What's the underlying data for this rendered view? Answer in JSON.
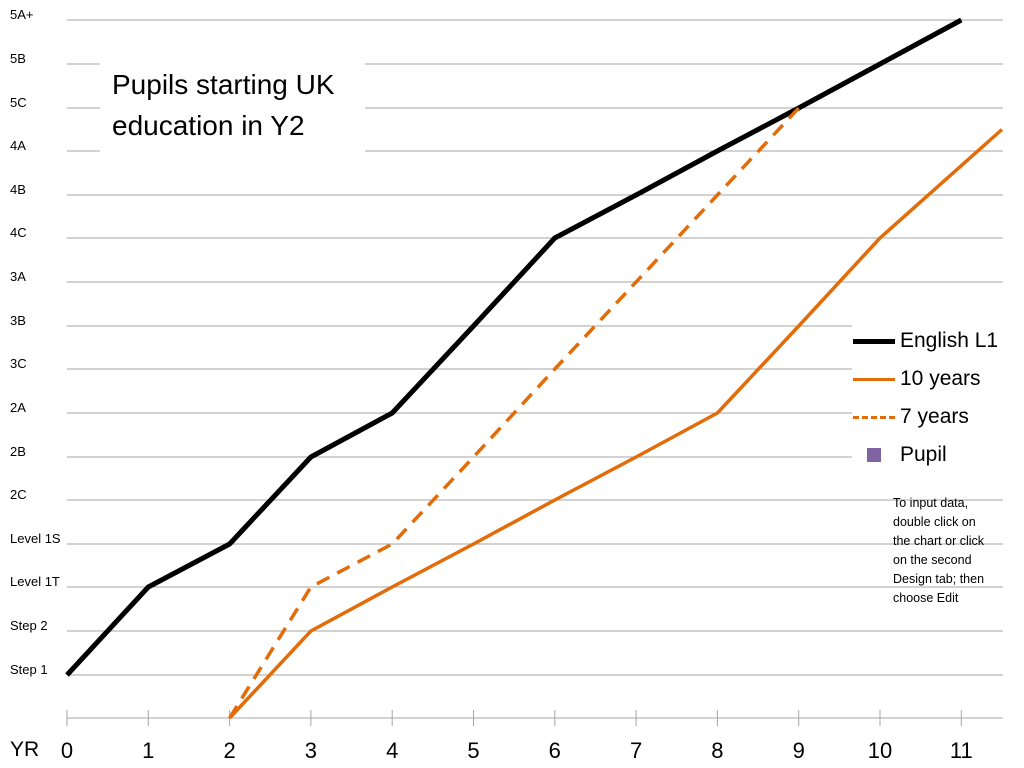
{
  "chart_data": {
    "type": "line",
    "title": "Pupils starting UK education in Y2",
    "xlabel": "YR",
    "x_ticks": [
      "0",
      "1",
      "2",
      "3",
      "4",
      "5",
      "6",
      "7",
      "8",
      "9",
      "10",
      "11"
    ],
    "y_levels": [
      "Step 1",
      "Step 2",
      "Level 1T",
      "Level 1S",
      "2C",
      "2B",
      "2A",
      "3C",
      "3B",
      "3A",
      "4C",
      "4B",
      "4A",
      "5C",
      "5B",
      "5A+"
    ],
    "series": [
      {
        "name": "English L1",
        "color": "#000000",
        "style": "solid",
        "x": [
          0,
          1,
          2,
          3,
          4,
          5,
          6,
          7,
          8,
          9,
          10,
          11
        ],
        "y": [
          "Step 1",
          "Level 1T",
          "Level 1S",
          "2B",
          "2A",
          "3B",
          "4C",
          "4B",
          "4A",
          "5C",
          "5B",
          "5A+"
        ]
      },
      {
        "name": "10 years",
        "color": "#e36c09",
        "style": "solid",
        "x": [
          2,
          3,
          4,
          5,
          6,
          7,
          8,
          9,
          10,
          11.5
        ],
        "y": [
          -1,
          1,
          2,
          3,
          4,
          5,
          6,
          8,
          10,
          12.5
        ],
        "y_index_note": ""
      },
      {
        "name": "7 years",
        "color": "#e36c09",
        "style": "dashed",
        "x": [
          2,
          3,
          4,
          5,
          6,
          7,
          8,
          9
        ],
        "y": [
          -1,
          2,
          3,
          5,
          7,
          9,
          11,
          13
        ]
      },
      {
        "name": "Pupil",
        "color": "#8064a2",
        "style": "marker",
        "x": [],
        "y": []
      }
    ],
    "legend_position": "right",
    "grid": true
  },
  "note": "To input data, double click on the chart or click on the second Design tab; then choose Edit"
}
